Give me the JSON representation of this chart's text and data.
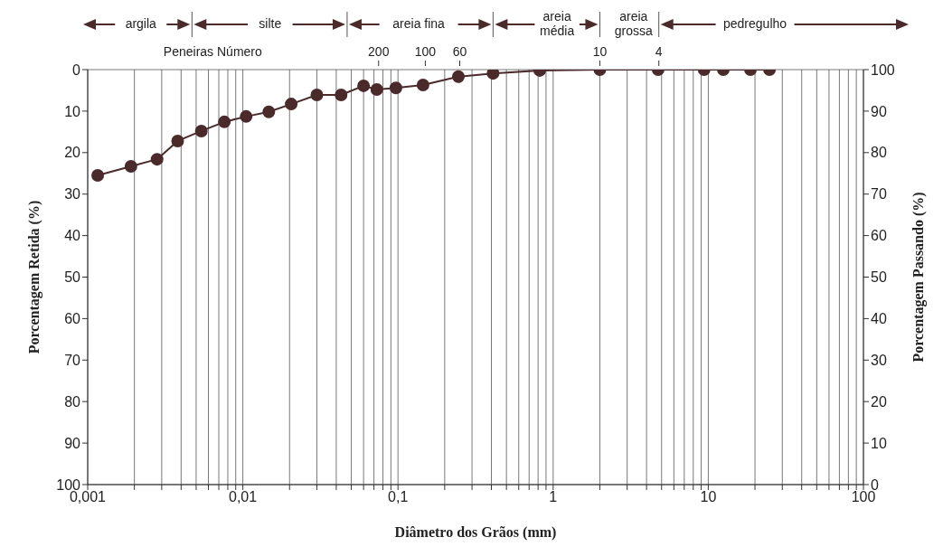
{
  "chart_data": {
    "type": "line",
    "xlabel": "Diâmetro dos Grãos (mm)",
    "ylabel": "Porcentagem Retida (%)",
    "y2label": "Porcentagem Passando (%)",
    "x": [
      0.00116,
      0.0019,
      0.0028,
      0.0038,
      0.0054,
      0.0076,
      0.0105,
      0.0147,
      0.0205,
      0.03,
      0.043,
      0.06,
      0.073,
      0.097,
      0.145,
      0.245,
      0.41,
      0.82,
      2.0,
      4.75,
      9.4,
      12.5,
      18.7,
      24.8
    ],
    "series": [
      {
        "color": "#4a2a2a",
        "values": [
          25.5,
          23.3,
          21.6,
          17.2,
          14.8,
          12.6,
          11.3,
          10.2,
          8.3,
          6.1,
          6.1,
          3.9,
          4.8,
          4.4,
          3.7,
          1.7,
          0.9,
          0.2,
          0,
          0,
          0,
          0,
          0,
          0
        ]
      }
    ],
    "log": "x",
    "marker": "circle",
    "line_style": "solid",
    "grid": true,
    "legend": false,
    "xlim": [
      0.001,
      100
    ],
    "xticks": [
      {
        "value": 0.001,
        "label": "0,001"
      },
      {
        "value": 0.002,
        "label": null
      },
      {
        "value": 0.003,
        "label": null
      },
      {
        "value": 0.004,
        "label": null
      },
      {
        "value": 0.005,
        "label": null
      },
      {
        "value": 0.006,
        "label": null
      },
      {
        "value": 0.007,
        "label": null
      },
      {
        "value": 0.008,
        "label": null
      },
      {
        "value": 0.009,
        "label": null
      },
      {
        "value": 0.01,
        "label": "0,01"
      },
      {
        "value": 0.02,
        "label": null
      },
      {
        "value": 0.03,
        "label": null
      },
      {
        "value": 0.04,
        "label": null
      },
      {
        "value": 0.05,
        "label": null
      },
      {
        "value": 0.06,
        "label": null
      },
      {
        "value": 0.07,
        "label": null
      },
      {
        "value": 0.08,
        "label": null
      },
      {
        "value": 0.09,
        "label": null
      },
      {
        "value": 0.1,
        "label": "0,1"
      },
      {
        "value": 0.2,
        "label": null
      },
      {
        "value": 0.3,
        "label": null
      },
      {
        "value": 0.4,
        "label": null
      },
      {
        "value": 0.5,
        "label": null
      },
      {
        "value": 0.6,
        "label": null
      },
      {
        "value": 0.7,
        "label": null
      },
      {
        "value": 0.8,
        "label": null
      },
      {
        "value": 0.9,
        "label": null
      },
      1,
      {
        "value": 2,
        "label": null
      },
      {
        "value": 3,
        "label": null
      },
      {
        "value": 4,
        "label": null
      },
      {
        "value": 5,
        "label": null
      },
      {
        "value": 6,
        "label": null
      },
      {
        "value": 7,
        "label": null
      },
      {
        "value": 8,
        "label": null
      },
      {
        "value": 9,
        "label": null
      },
      10,
      {
        "value": 20,
        "label": null
      },
      {
        "value": 30,
        "label": null
      },
      {
        "value": 40,
        "label": null
      },
      {
        "value": 50,
        "label": null
      },
      {
        "value": 60,
        "label": null
      },
      {
        "value": 70,
        "label": null
      },
      {
        "value": 80,
        "label": null
      },
      {
        "value": 90,
        "label": null
      },
      100
    ],
    "ylim": [
      100,
      0
    ],
    "yticks": [
      0,
      10,
      20,
      30,
      40,
      50,
      60,
      70,
      80,
      90,
      100
    ],
    "y2lim": [
      0,
      100
    ],
    "y2ticks": [
      0,
      10,
      20,
      30,
      40,
      50,
      60,
      70,
      80,
      90,
      100
    ],
    "annotations": [
      "argila",
      "silte",
      "areia fina",
      "areia\nmédia",
      "areia\ngrossa",
      "pedregulho",
      "Peneiras  Número",
      "200",
      "100",
      "60",
      "10",
      "4"
    ]
  }
}
